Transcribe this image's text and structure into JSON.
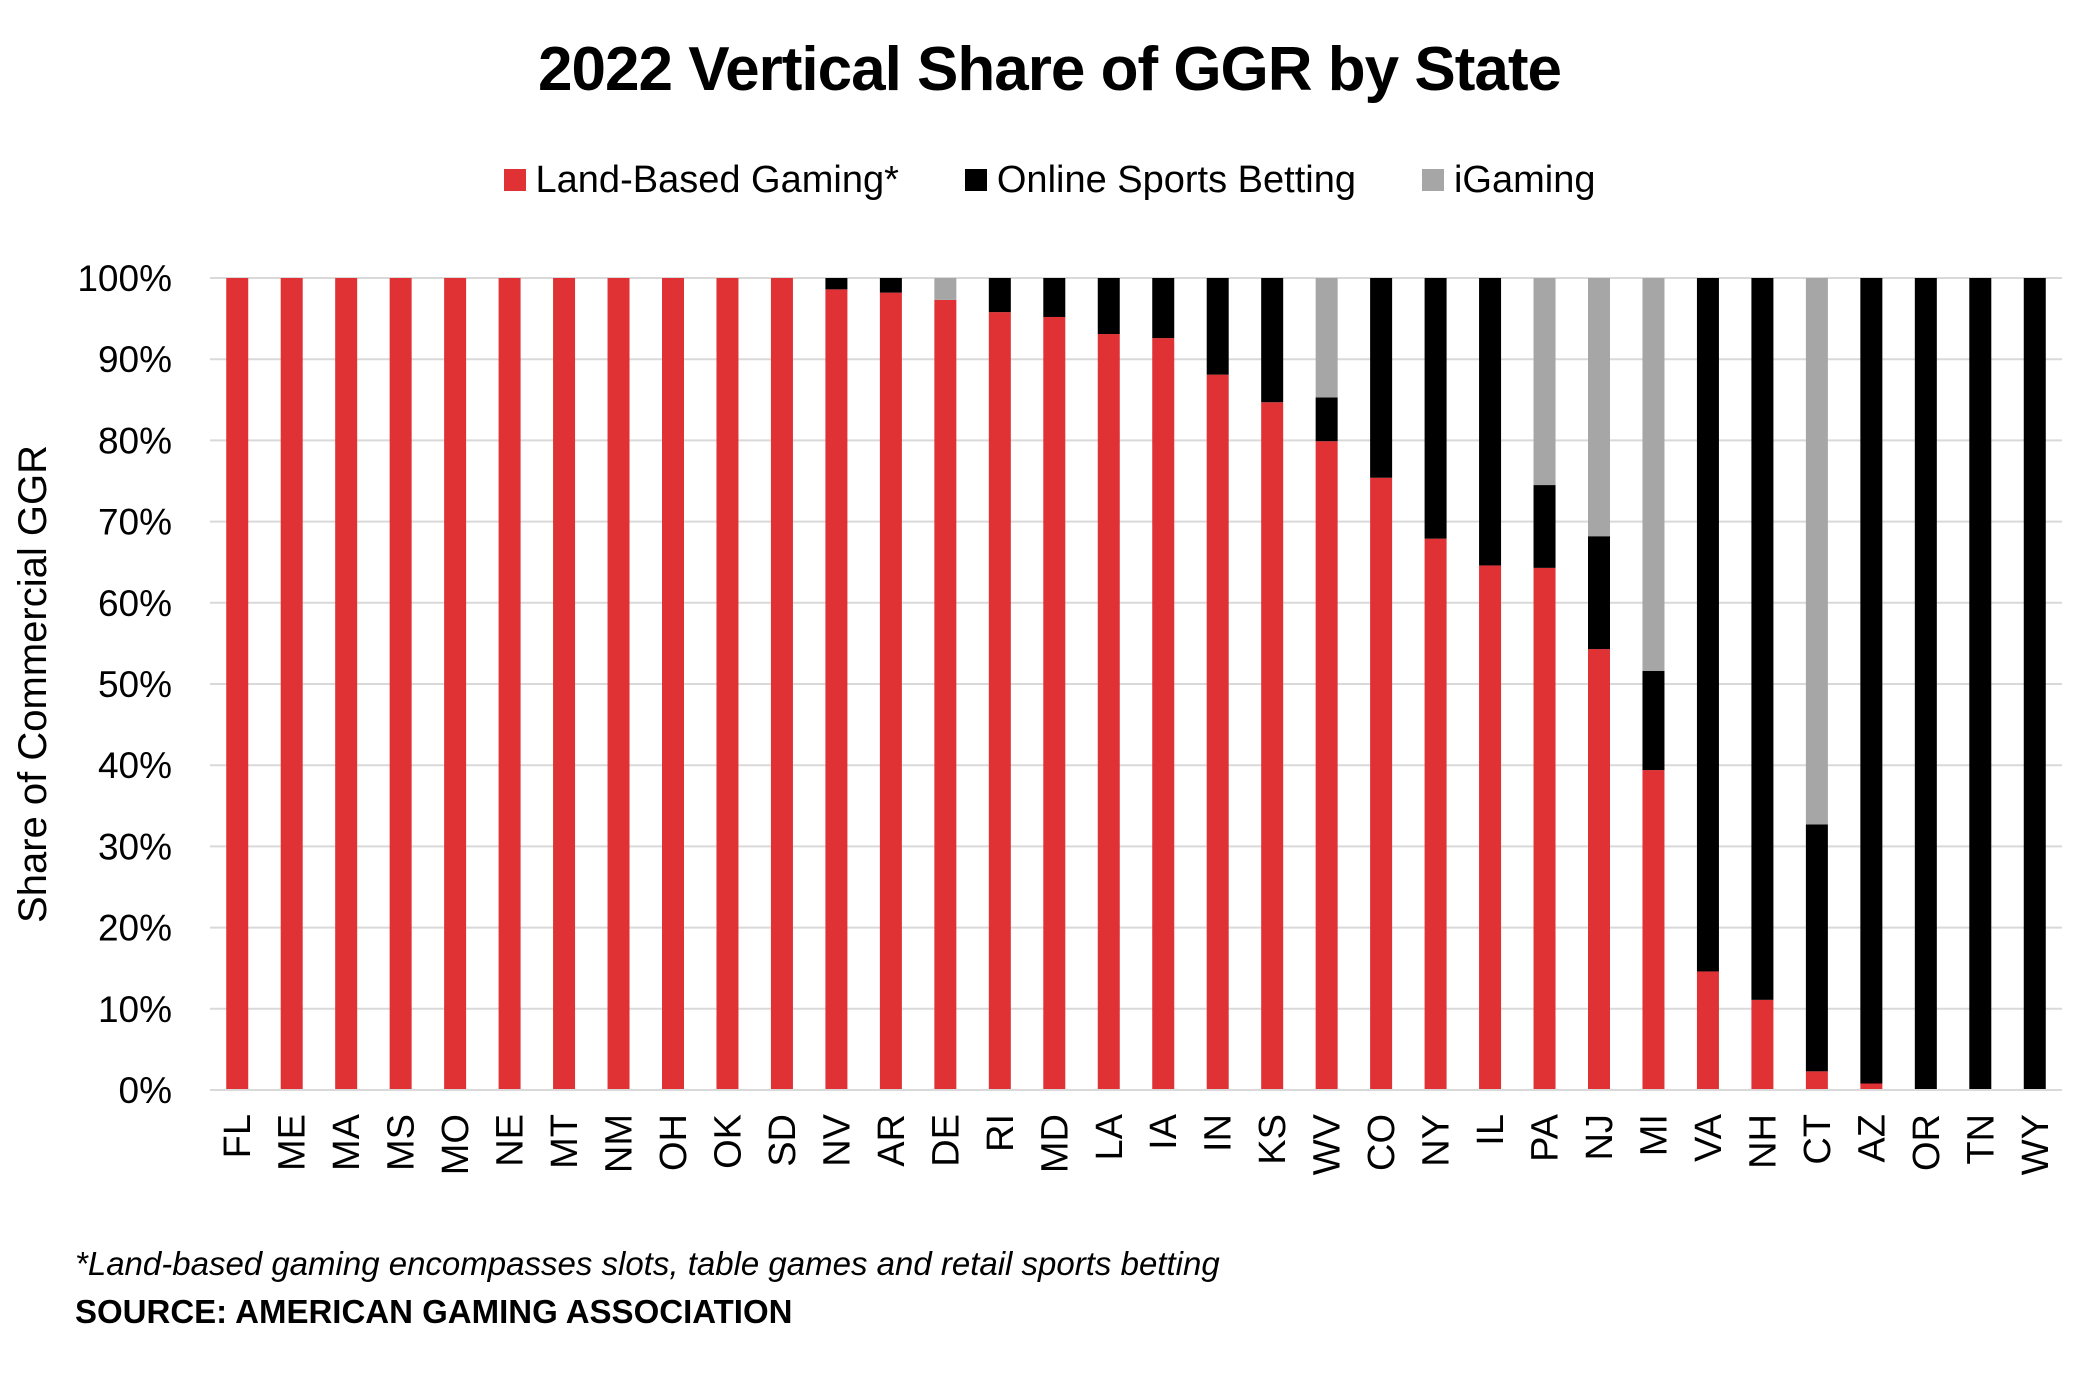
{
  "colors": {
    "land_based": "#e03234",
    "online_sports": "#000000",
    "igaming": "#a6a6a6",
    "grid": "#d9d9d9"
  },
  "footnote": "*Land-based gaming encompasses slots, table games and retail sports betting",
  "source": "SOURCE: AMERICAN GAMING ASSOCIATION",
  "chart_data": {
    "type": "bar",
    "stacked": true,
    "title": "2022 Vertical Share of GGR by State",
    "xlabel": "",
    "ylabel": "Share of Commercial GGR",
    "ylim": [
      0,
      100
    ],
    "yticks": [
      "0%",
      "10%",
      "20%",
      "30%",
      "40%",
      "50%",
      "60%",
      "70%",
      "80%",
      "90%",
      "100%"
    ],
    "grid": true,
    "legend_position": "top-center",
    "categories": [
      "FL",
      "ME",
      "MA",
      "MS",
      "MO",
      "NE",
      "MT",
      "NM",
      "OH",
      "OK",
      "SD",
      "NV",
      "AR",
      "DE",
      "RI",
      "MD",
      "LA",
      "IA",
      "IN",
      "KS",
      "WV",
      "CO",
      "NY",
      "IL",
      "PA",
      "NJ",
      "MI",
      "VA",
      "NH",
      "CT",
      "AZ",
      "OR",
      "TN",
      "WY"
    ],
    "series": [
      {
        "name": "Land-Based Gaming*",
        "values": [
          100,
          100,
          100,
          100,
          100,
          100,
          100,
          100,
          100,
          100,
          100,
          98.6,
          98.2,
          97.3,
          95.8,
          95.2,
          93.1,
          92.6,
          88.1,
          84.7,
          79.9,
          75.4,
          67.9,
          64.6,
          64.3,
          54.3,
          39.4,
          14.6,
          11.1,
          2.3,
          0.8,
          0,
          0,
          0
        ]
      },
      {
        "name": "Online Sports Betting",
        "values": [
          0,
          0,
          0,
          0,
          0,
          0,
          0,
          0,
          0,
          0,
          0,
          1.4,
          1.8,
          0,
          4.2,
          4.8,
          6.9,
          7.4,
          11.9,
          15.3,
          5.4,
          24.6,
          32.1,
          35.4,
          10.2,
          13.9,
          12.2,
          85.4,
          88.9,
          30.4,
          99.2,
          100,
          100,
          100
        ]
      },
      {
        "name": "iGaming",
        "values": [
          0,
          0,
          0,
          0,
          0,
          0,
          0,
          0,
          0,
          0,
          0,
          0,
          0,
          2.7,
          0,
          0,
          0,
          0,
          0,
          0,
          14.7,
          0,
          0,
          0,
          25.5,
          31.8,
          48.4,
          0,
          0,
          67.3,
          0,
          0,
          0,
          0
        ]
      }
    ]
  }
}
